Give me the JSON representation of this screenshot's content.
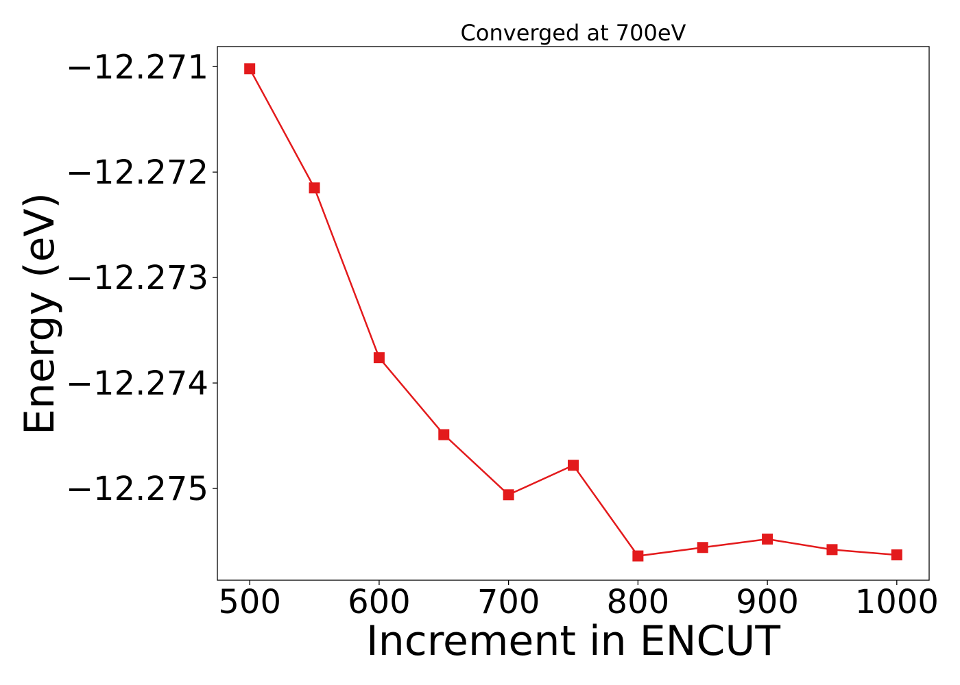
{
  "chart_data": {
    "type": "line",
    "title": "Converged at 700eV",
    "xlabel": "Increment in ENCUT",
    "ylabel": "Energy (eV)",
    "xlim": [
      475,
      1025
    ],
    "ylim": [
      -12.27587,
      -12.27081
    ],
    "x_ticks": [
      500,
      600,
      700,
      800,
      900,
      1000
    ],
    "x_tick_labels": [
      "500",
      "600",
      "700",
      "800",
      "900",
      "1000"
    ],
    "y_ticks": [
      -12.271,
      -12.272,
      -12.273,
      -12.274,
      -12.275
    ],
    "y_tick_labels": [
      "−12.271",
      "−12.272",
      "−12.273",
      "−12.274",
      "−12.275"
    ],
    "grid": false,
    "marker": "square",
    "colors": {
      "series": "#e31a1c"
    },
    "series": [
      {
        "x": [
          500,
          550,
          600,
          650,
          700,
          750,
          800,
          850,
          900,
          950,
          1000
        ],
        "values": [
          -12.27102,
          -12.27215,
          -12.27376,
          -12.27449,
          -12.27506,
          -12.27478,
          -12.27564,
          -12.27556,
          -12.27548,
          -12.27558,
          -12.27563
        ]
      }
    ]
  }
}
